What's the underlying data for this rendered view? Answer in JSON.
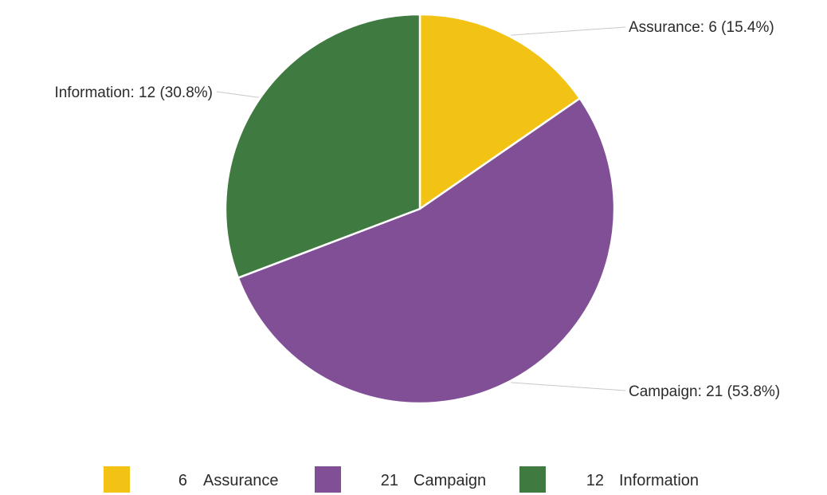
{
  "chart_data": {
    "type": "pie",
    "categories": [
      "Assurance",
      "Campaign",
      "Information"
    ],
    "values": [
      6,
      21,
      12
    ],
    "colors": [
      "#f2c314",
      "#814f96",
      "#3f7a40"
    ],
    "slice_labels": [
      "Assurance: 6 (15.4%)",
      "Campaign: 21 (53.8%)",
      "Information: 12 (30.8%)"
    ],
    "legend_position": "bottom",
    "legend": [
      {
        "count": "6",
        "name": "Assurance",
        "color": "#f2c314"
      },
      {
        "count": "21",
        "name": "Campaign",
        "color": "#814f96"
      },
      {
        "count": "12",
        "name": "Information",
        "color": "#3f7a40"
      }
    ]
  }
}
